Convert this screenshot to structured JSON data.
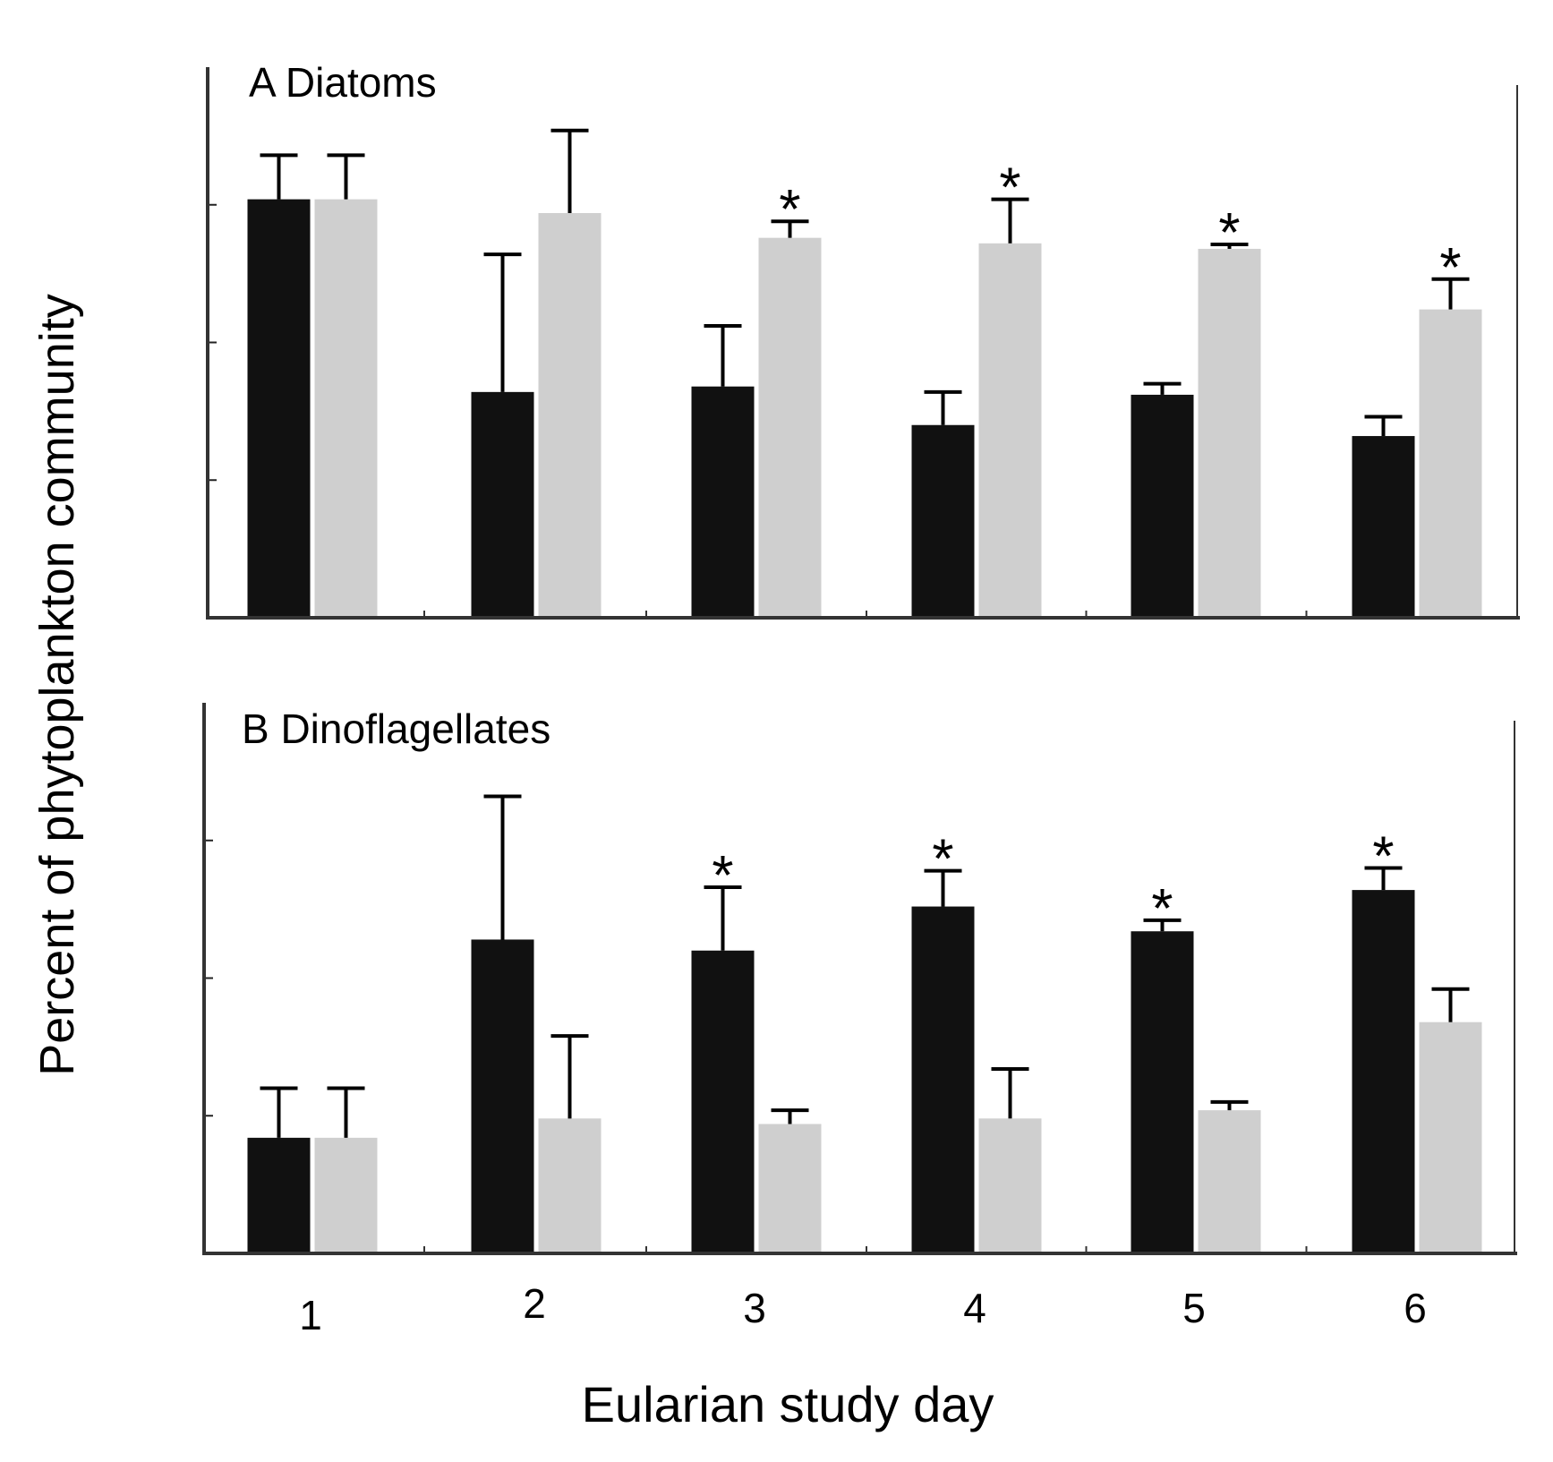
{
  "chart_data": [
    {
      "panel_id": "A",
      "type": "bar",
      "title": "A Diatoms",
      "ylabel": "Percent of phytoplankton community",
      "xlabel": "Eularian study day",
      "ylim": [
        0,
        1.0
      ],
      "y_ticks": [
        0.25,
        0.5,
        0.75
      ],
      "y_tick_labels": false,
      "categories": [
        "1",
        "2",
        "3",
        "4",
        "5",
        "6"
      ],
      "series": [
        {
          "name": "dark",
          "color": "#111111",
          "values": [
            0.76,
            0.41,
            0.42,
            0.35,
            0.405,
            0.33
          ],
          "errors": [
            0.08,
            0.25,
            0.11,
            0.06,
            0.02,
            0.035
          ]
        },
        {
          "name": "light",
          "color": "#cfcfcf",
          "values": [
            0.76,
            0.735,
            0.69,
            0.68,
            0.67,
            0.56
          ],
          "errors": [
            0.08,
            0.15,
            0.03,
            0.08,
            0.008,
            0.055
          ]
        }
      ],
      "significance": [
        "",
        "",
        "*",
        "*",
        "*",
        "*"
      ]
    },
    {
      "panel_id": "B",
      "type": "bar",
      "title": "B Dinoflagellates",
      "ylabel": "Percent of phytoplankton community",
      "xlabel": "Eularian study day",
      "ylim": [
        0,
        1.0
      ],
      "y_ticks": [
        0.25,
        0.5,
        0.75
      ],
      "y_tick_labels": false,
      "categories": [
        "1",
        "2",
        "3",
        "4",
        "5",
        "6"
      ],
      "series": [
        {
          "name": "dark",
          "color": "#111111",
          "values": [
            0.21,
            0.57,
            0.55,
            0.63,
            0.585,
            0.66
          ],
          "errors": [
            0.09,
            0.26,
            0.115,
            0.065,
            0.02,
            0.04
          ]
        },
        {
          "name": "light",
          "color": "#cfcfcf",
          "values": [
            0.21,
            0.245,
            0.235,
            0.245,
            0.26,
            0.42
          ],
          "errors": [
            0.09,
            0.15,
            0.025,
            0.09,
            0.015,
            0.06
          ]
        }
      ],
      "significance": [
        "",
        "",
        "*",
        "*",
        "*",
        "*"
      ]
    }
  ],
  "x_category_labels": [
    "1",
    "2",
    "3",
    "4",
    "5",
    "6"
  ],
  "shared_xlabel": "Eularian study day",
  "shared_ylabel": "Percent of phytoplankton community"
}
